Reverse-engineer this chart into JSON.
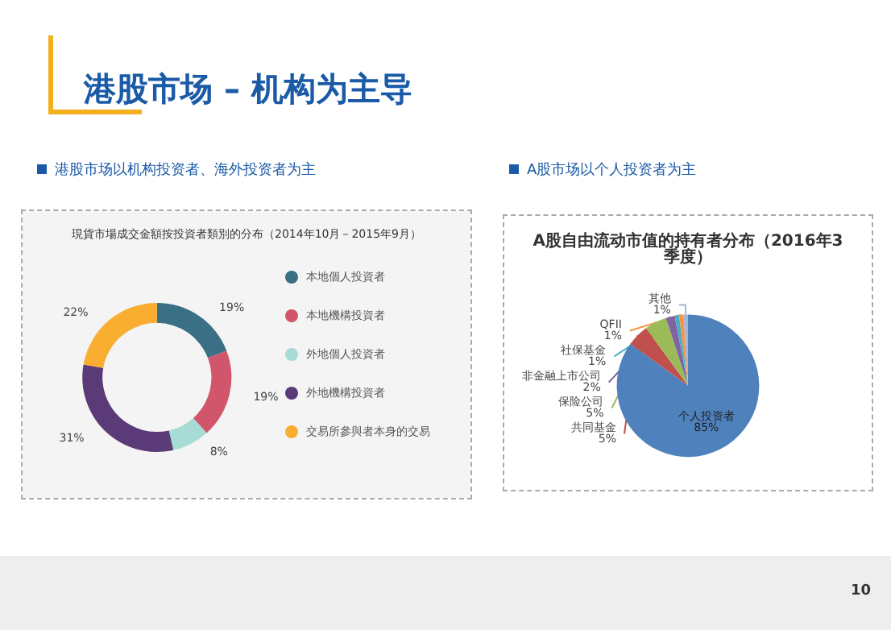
{
  "chart_data": [
    {
      "type": "donut",
      "title": "現貨市場成交金額按投資者類別的分布（2014年10月－2015年9月）",
      "annotations": [
        "港股市场 – 机构为主导",
        "港股市场以机构投资者、海外投资者为主"
      ],
      "categories": [
        "本地個人投資者",
        "本地機構投資者",
        "外地個人投資者",
        "外地機構投資者",
        "交易所參與者本身的交易"
      ],
      "values": [
        19,
        19,
        8,
        31,
        22
      ],
      "value_labels": [
        "19%",
        "19%",
        "8%",
        "31%",
        "22%"
      ],
      "colors": [
        "#3a6f86",
        "#d1566b",
        "#a6dcd5",
        "#5b3a78",
        "#f9ae32"
      ],
      "legend": "right"
    },
    {
      "type": "pie",
      "title": "A股自由流动市值的持有者分布（2016年3季度）",
      "annotations": [
        "A股市场以个人投资者为主",
        "10"
      ],
      "categories": [
        "个人投资者",
        "共同基金",
        "保险公司",
        "非金融上市公司",
        "社保基金",
        "QFII",
        "其他"
      ],
      "values": [
        85,
        5,
        5,
        2,
        1,
        1,
        1
      ],
      "value_labels": [
        "85%",
        "5%",
        "5%",
        "2%",
        "1%",
        "1%",
        "1%"
      ],
      "colors": [
        "#4f81bd",
        "#c0504d",
        "#9bbb59",
        "#8064a2",
        "#4bacc6",
        "#f79646",
        "#a5b6d6"
      ]
    }
  ]
}
